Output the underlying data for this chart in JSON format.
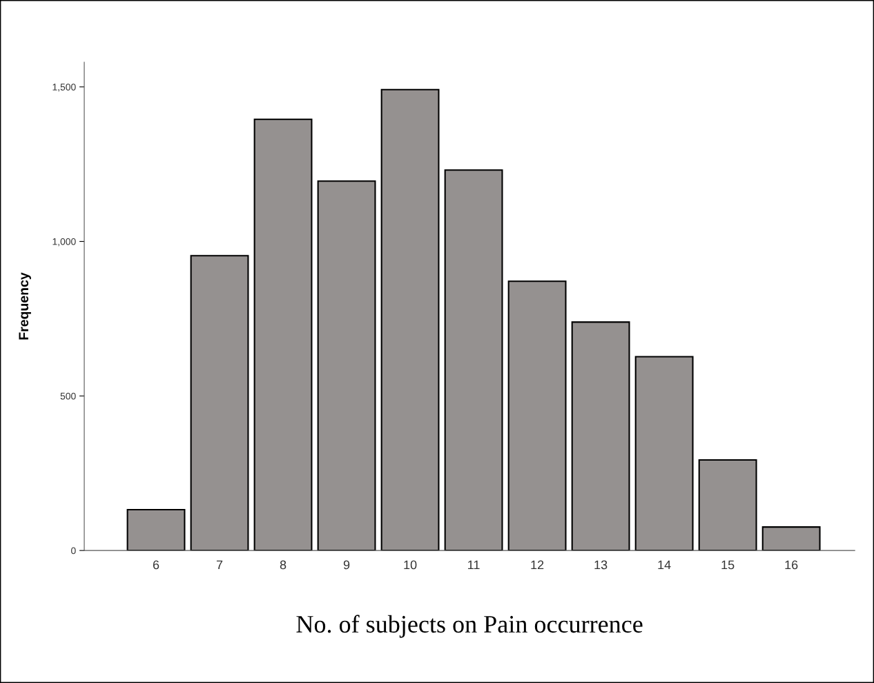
{
  "chart_data": {
    "type": "bar",
    "xlabel": "No. of subjects on Pain occurrence",
    "ylabel": "Frequency",
    "categories": [
      "6",
      "7",
      "8",
      "9",
      "10",
      "11",
      "12",
      "13",
      "14",
      "15",
      "16"
    ],
    "values": [
      132,
      954,
      1395,
      1195,
      1491,
      1231,
      871,
      739,
      627,
      293,
      76
    ],
    "color": "#959190",
    "ylim": [
      0,
      1580
    ],
    "yticks": [
      0,
      {
        "value": 500,
        "label": "500"
      },
      {
        "value": 1000,
        "label": "1,000"
      },
      {
        "value": 1500,
        "label": "1,500"
      }
    ],
    "grid": false,
    "legend": false
  }
}
